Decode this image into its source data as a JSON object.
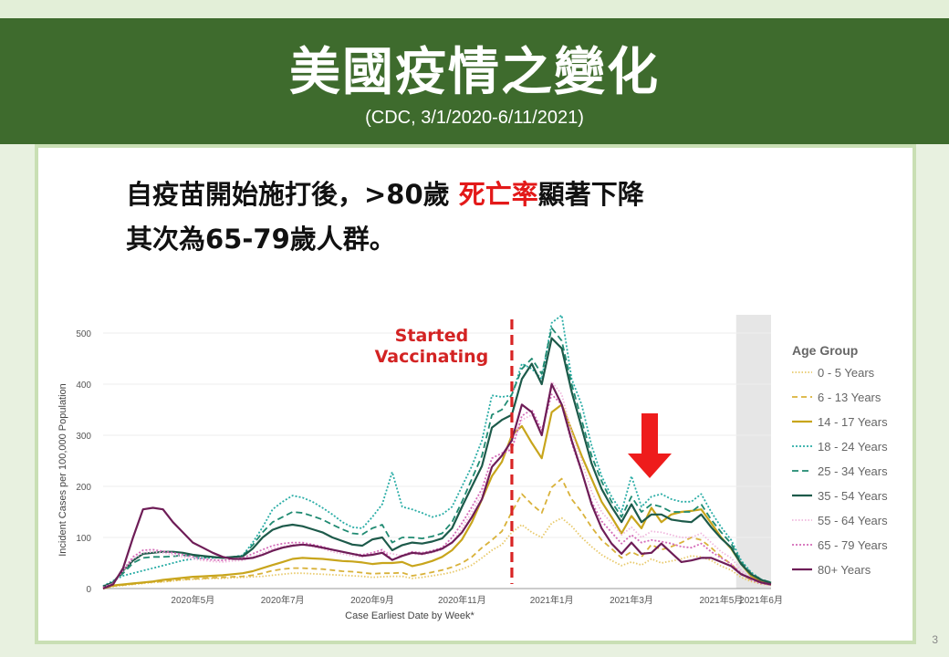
{
  "header": {
    "title": "美國疫情之變化",
    "subtitle": "(CDC, 3/1/2020-6/11/2021)"
  },
  "body": {
    "line1_before": "自疫苗開始施打後，>80歲 ",
    "line1_red": "死亡率",
    "line1_after": "顯著下降",
    "line2": "其次為65-79歲人群。"
  },
  "page_number": "3",
  "colors": {
    "header_bg": "#3e6b2d",
    "accent_red": "#e31919"
  },
  "chart_data": {
    "type": "line",
    "xlabel": "Case Earliest Date by Week*",
    "ylabel": "Incident Cases per 100,000 Population",
    "ylim": [
      0,
      500
    ],
    "y_ticks": [
      0,
      100,
      200,
      300,
      400,
      500
    ],
    "x_ticks": [
      "2020年5月",
      "2020年7月",
      "2020年9月",
      "2020年11月",
      "2021年1月",
      "2021年3月",
      "2021年5月",
      "2021年6月"
    ],
    "x_tick_weeks": [
      9,
      18,
      27,
      36,
      45,
      53,
      62,
      66
    ],
    "x_weeks": 68,
    "annotation": "Started Vaccinating",
    "vaccination_week": 41,
    "shaded_from_week": 63.5,
    "legend_title": "Age Group",
    "series": [
      {
        "name": "0 - 5 Years",
        "color": "#e8c96a",
        "dash": "1.5,2",
        "values": [
          0,
          4,
          6,
          8,
          10,
          12,
          13,
          15,
          17,
          18,
          19,
          20,
          20,
          21,
          22,
          23,
          24,
          26,
          28,
          30,
          30,
          29,
          28,
          27,
          26,
          25,
          24,
          22,
          23,
          24,
          24,
          20,
          22,
          25,
          28,
          32,
          38,
          46,
          60,
          75,
          86,
          110,
          125,
          110,
          100,
          128,
          138,
          122,
          100,
          82,
          66,
          55,
          45,
          52,
          46,
          58,
          50,
          54,
          58,
          64,
          62,
          55,
          44,
          36,
          22,
          14,
          9,
          7
        ]
      },
      {
        "name": "6 - 13 Years",
        "color": "#d9b23a",
        "dash": "6,4",
        "values": [
          0,
          5,
          7,
          9,
          11,
          13,
          14,
          16,
          18,
          19,
          20,
          21,
          22,
          23,
          24,
          26,
          30,
          35,
          38,
          40,
          40,
          39,
          38,
          36,
          34,
          33,
          31,
          29,
          30,
          30,
          31,
          25,
          28,
          32,
          36,
          42,
          50,
          62,
          80,
          95,
          112,
          150,
          185,
          165,
          148,
          198,
          215,
          175,
          150,
          120,
          95,
          78,
          60,
          72,
          62,
          86,
          76,
          82,
          90,
          100,
          95,
          80,
          62,
          48,
          28,
          17,
          12,
          9
        ]
      },
      {
        "name": "14 - 17 Years",
        "color": "#c8a51c",
        "dash": "",
        "values": [
          0,
          6,
          8,
          10,
          12,
          14,
          17,
          19,
          21,
          23,
          24,
          25,
          26,
          28,
          30,
          34,
          40,
          46,
          52,
          58,
          60,
          59,
          58,
          56,
          54,
          53,
          51,
          48,
          50,
          50,
          52,
          44,
          48,
          54,
          62,
          75,
          96,
          130,
          175,
          220,
          248,
          300,
          318,
          285,
          255,
          345,
          360,
          310,
          260,
          215,
          170,
          140,
          108,
          142,
          118,
          158,
          130,
          145,
          150,
          152,
          155,
          128,
          100,
          78,
          48,
          25,
          15,
          11
        ]
      },
      {
        "name": "18 - 24 Years",
        "color": "#2aada6",
        "dash": "2,2",
        "values": [
          5,
          15,
          25,
          30,
          35,
          40,
          45,
          50,
          55,
          58,
          60,
          60,
          61,
          62,
          65,
          90,
          120,
          155,
          170,
          182,
          178,
          170,
          158,
          145,
          130,
          120,
          118,
          140,
          165,
          228,
          160,
          155,
          148,
          140,
          145,
          160,
          200,
          240,
          290,
          378,
          375,
          378,
          440,
          430,
          410,
          520,
          535,
          410,
          360,
          280,
          220,
          180,
          150,
          220,
          160,
          180,
          185,
          175,
          170,
          170,
          185,
          150,
          120,
          95,
          55,
          32,
          18,
          12
        ]
      },
      {
        "name": "25 - 34 Years",
        "color": "#1f8a71",
        "dash": "7,4",
        "values": [
          4,
          12,
          30,
          50,
          60,
          62,
          62,
          63,
          65,
          64,
          62,
          61,
          60,
          62,
          64,
          85,
          110,
          130,
          140,
          150,
          148,
          142,
          135,
          125,
          116,
          108,
          106,
          118,
          125,
          90,
          100,
          100,
          98,
          102,
          108,
          130,
          170,
          215,
          260,
          340,
          350,
          380,
          430,
          450,
          420,
          510,
          485,
          400,
          330,
          260,
          210,
          170,
          140,
          180,
          150,
          165,
          160,
          150,
          150,
          150,
          165,
          135,
          110,
          88,
          52,
          30,
          18,
          12
        ]
      },
      {
        "name": "35 - 54 Years",
        "color": "#1d5a4a",
        "dash": "",
        "values": [
          4,
          12,
          35,
          55,
          68,
          70,
          72,
          72,
          70,
          66,
          64,
          62,
          60,
          62,
          63,
          78,
          100,
          115,
          122,
          125,
          122,
          116,
          110,
          100,
          93,
          86,
          84,
          96,
          100,
          75,
          85,
          90,
          88,
          92,
          98,
          118,
          160,
          200,
          240,
          315,
          330,
          340,
          410,
          440,
          400,
          490,
          470,
          385,
          315,
          245,
          195,
          160,
          130,
          165,
          130,
          145,
          145,
          135,
          132,
          130,
          145,
          120,
          98,
          80,
          48,
          28,
          17,
          11
        ]
      },
      {
        "name": "55 - 64 Years",
        "color": "#f0b7dd",
        "dash": "1.5,2",
        "values": [
          2,
          10,
          35,
          58,
          70,
          72,
          70,
          66,
          62,
          58,
          55,
          53,
          52,
          54,
          55,
          62,
          70,
          78,
          82,
          86,
          86,
          82,
          78,
          72,
          68,
          64,
          62,
          66,
          72,
          68,
          64,
          68,
          66,
          70,
          76,
          90,
          118,
          150,
          185,
          240,
          260,
          280,
          330,
          340,
          305,
          405,
          380,
          305,
          250,
          190,
          150,
          128,
          105,
          120,
          100,
          112,
          110,
          105,
          100,
          100,
          108,
          90,
          72,
          60,
          36,
          20,
          12,
          8
        ]
      },
      {
        "name": "65 - 79 Years",
        "color": "#d46ab8",
        "dash": "2,2",
        "values": [
          2,
          10,
          36,
          62,
          75,
          76,
          73,
          70,
          66,
          62,
          58,
          56,
          55,
          58,
          60,
          68,
          76,
          84,
          88,
          90,
          90,
          86,
          82,
          76,
          72,
          68,
          66,
          70,
          76,
          56,
          65,
          72,
          70,
          74,
          80,
          100,
          128,
          160,
          195,
          255,
          265,
          272,
          338,
          350,
          310,
          380,
          360,
          285,
          228,
          170,
          132,
          110,
          88,
          105,
          90,
          95,
          92,
          88,
          82,
          80,
          88,
          72,
          60,
          48,
          30,
          17,
          10,
          7
        ]
      },
      {
        "name": "80+ Years",
        "color": "#6e1d57",
        "dash": "",
        "values": [
          0,
          8,
          40,
          100,
          155,
          158,
          155,
          130,
          110,
          90,
          80,
          70,
          62,
          58,
          58,
          60,
          66,
          74,
          80,
          84,
          86,
          84,
          80,
          76,
          72,
          68,
          64,
          66,
          70,
          56,
          64,
          70,
          68,
          72,
          78,
          90,
          110,
          140,
          175,
          238,
          260,
          290,
          360,
          345,
          300,
          400,
          360,
          290,
          230,
          165,
          118,
          88,
          68,
          90,
          68,
          70,
          88,
          70,
          52,
          55,
          60,
          60,
          52,
          44,
          28,
          20,
          12,
          8
        ]
      }
    ]
  }
}
